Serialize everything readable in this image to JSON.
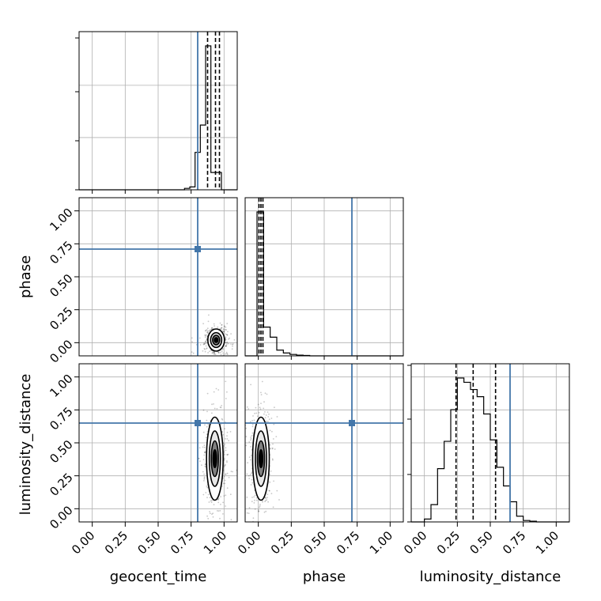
{
  "chart_data": {
    "type": "corner",
    "parameters": [
      "geocent_time",
      "phase",
      "luminosity_distance"
    ],
    "axis_range": [
      -0.1,
      1.1
    ],
    "tick_values": [
      0.0,
      0.25,
      0.5,
      0.75,
      1.0
    ],
    "tick_labels": [
      "0.00",
      "0.25",
      "0.50",
      "0.75",
      "1.00"
    ],
    "grid": true,
    "truth_color": "#4477aa",
    "truths": {
      "geocent_time": 0.8,
      "phase": 0.71,
      "luminosity_distance": 0.65
    },
    "quantiles": {
      "geocent_time": [
        0.875,
        0.935,
        0.965
      ],
      "phase": [
        0.005,
        0.02,
        0.035
      ],
      "luminosity_distance": [
        0.24,
        0.37,
        0.54
      ]
    },
    "histograms": {
      "geocent_time": {
        "edges": [
          0.7,
          0.74,
          0.78,
          0.82,
          0.86,
          0.9,
          0.94,
          0.98,
          1.02
        ],
        "counts": [
          0.01,
          0.02,
          0.26,
          0.45,
          1.0,
          0.12,
          0.12,
          0.0
        ]
      },
      "phase": {
        "edges": [
          -0.01,
          0.04,
          0.09,
          0.14,
          0.19,
          0.24,
          0.29,
          0.34,
          0.39
        ],
        "counts": [
          1.0,
          0.2,
          0.13,
          0.04,
          0.02,
          0.01,
          0.005,
          0.003
        ]
      },
      "luminosity_distance": {
        "edges": [
          0.0,
          0.05,
          0.1,
          0.15,
          0.2,
          0.25,
          0.3,
          0.35,
          0.4,
          0.45,
          0.5,
          0.55,
          0.6,
          0.65,
          0.7,
          0.75,
          0.8,
          0.85
        ],
        "counts": [
          0.02,
          0.12,
          0.37,
          0.56,
          0.78,
          1.0,
          0.97,
          0.92,
          0.87,
          0.75,
          0.57,
          0.38,
          0.25,
          0.14,
          0.04,
          0.01,
          0.005
        ]
      }
    },
    "pair_clouds": {
      "phase_vs_geocent_time": {
        "x_center": 0.94,
        "y_center": 0.02,
        "x_spread": 0.03,
        "y_spread": 0.04
      },
      "luminosity_distance_vs_geocent_time": {
        "x_center": 0.93,
        "y_center": 0.38,
        "x_spread": 0.03,
        "y_spread": 0.15
      },
      "luminosity_distance_vs_phase": {
        "x_center": 0.02,
        "y_center": 0.38,
        "x_spread": 0.03,
        "y_spread": 0.15
      }
    }
  }
}
